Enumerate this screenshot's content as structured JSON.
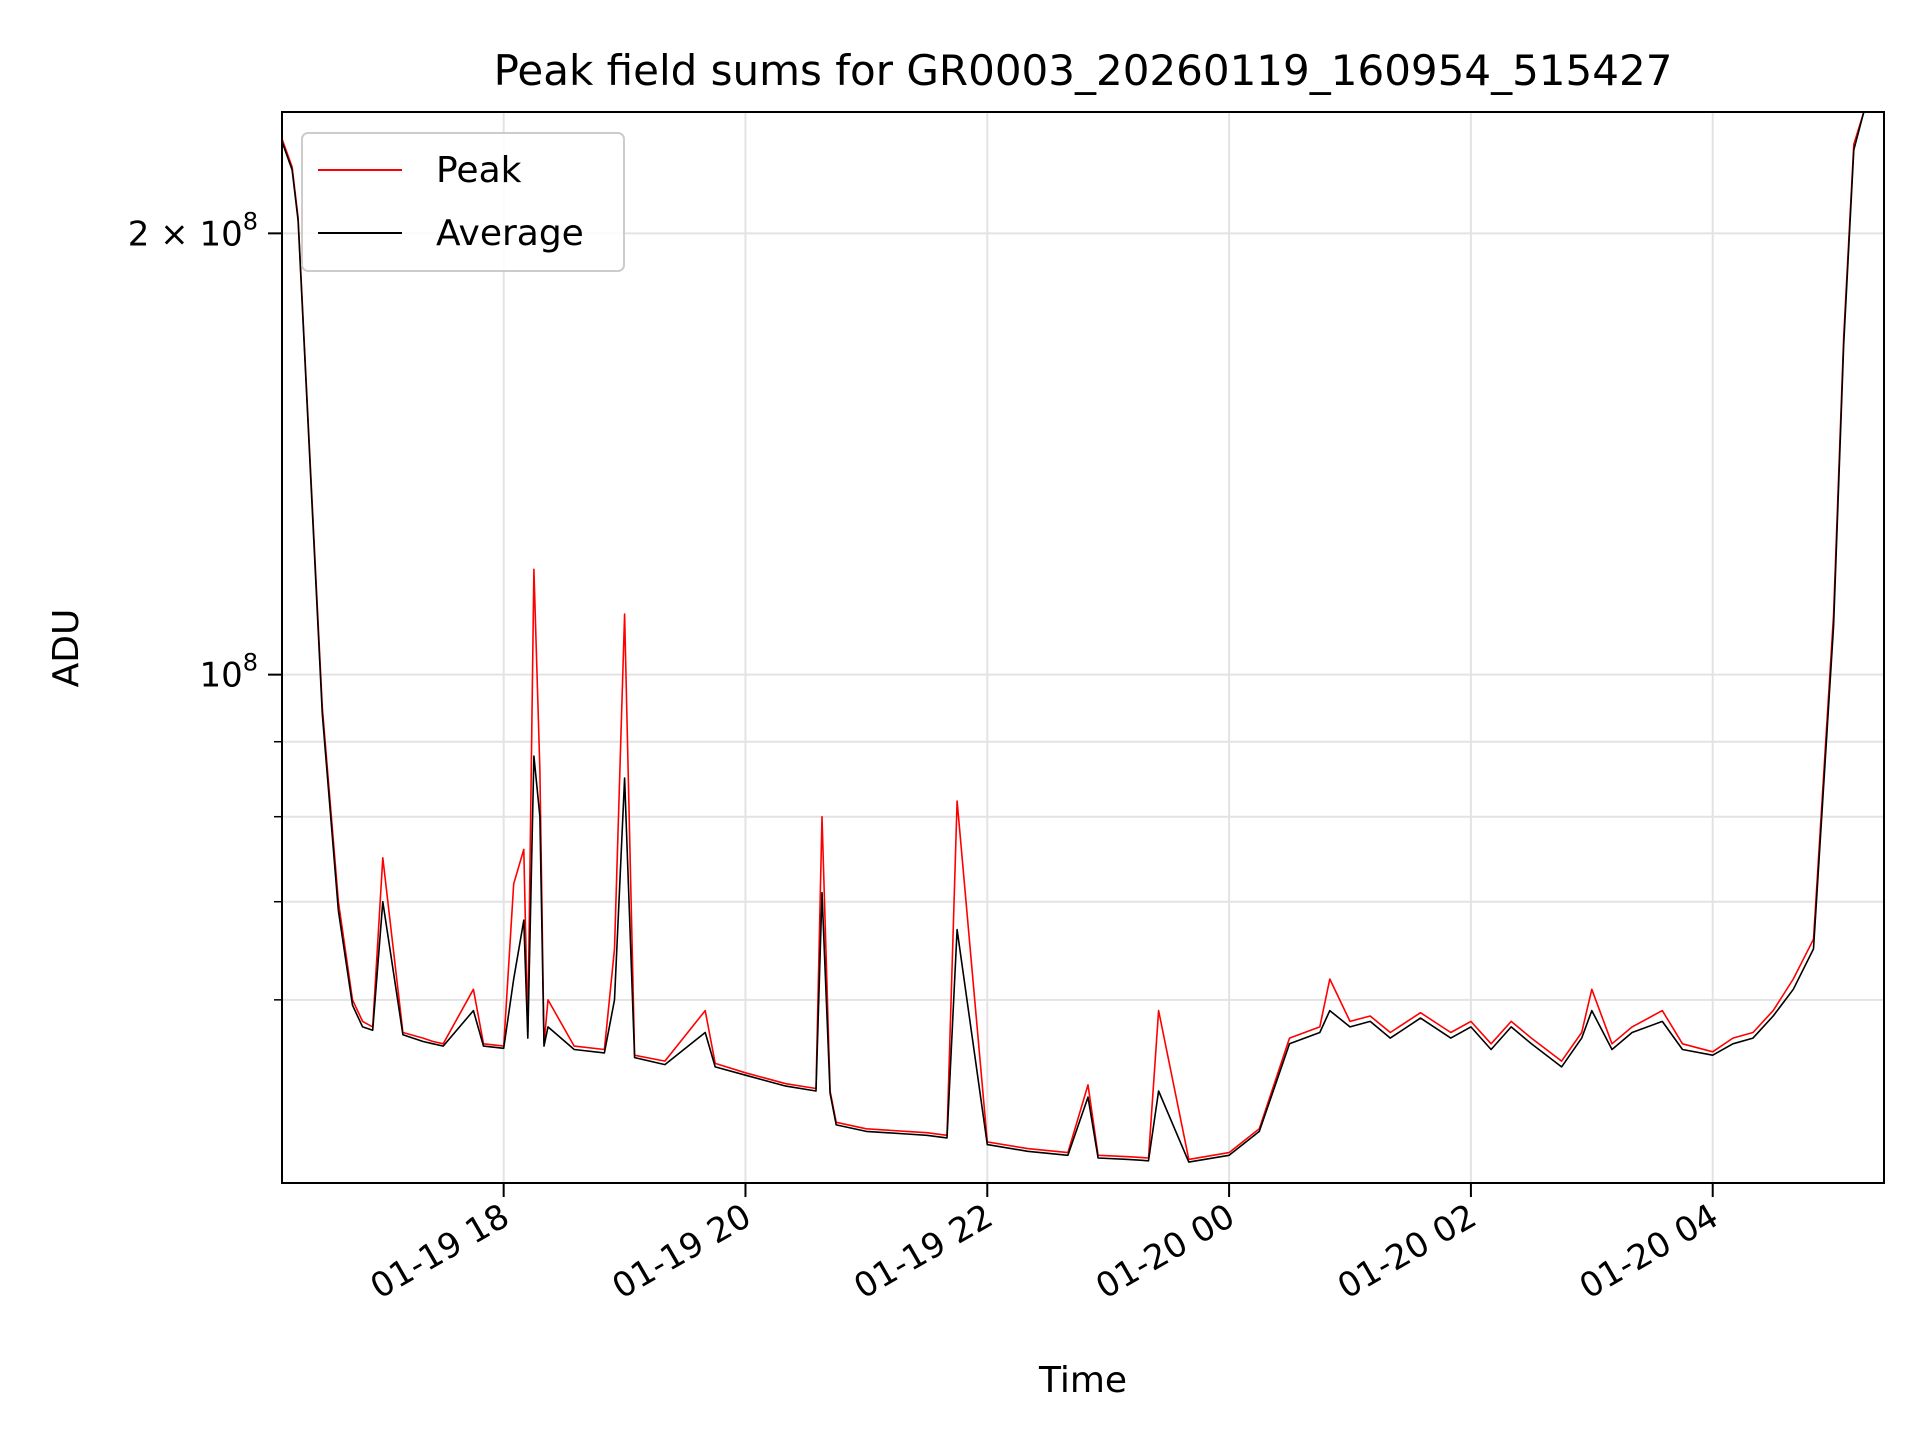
{
  "chart_data": {
    "type": "line",
    "title": "Peak field sums for GR0003_20260119_160954_515427",
    "xlabel": "Time",
    "ylabel": "ADU",
    "yscale": "log",
    "xlim": [
      "2026-01-19 16:10",
      "2026-01-20 05:25"
    ],
    "ylim": [
      45000000,
      242000000
    ],
    "grid": true,
    "legend": "top-left",
    "x_ticks": [
      {
        "time": "2026-01-19 18:00",
        "label": "01-19 18"
      },
      {
        "time": "2026-01-19 20:00",
        "label": "01-19 20"
      },
      {
        "time": "2026-01-19 22:00",
        "label": "01-19 22"
      },
      {
        "time": "2026-01-20 00:00",
        "label": "01-20 00"
      },
      {
        "time": "2026-01-20 02:00",
        "label": "01-20 02"
      },
      {
        "time": "2026-01-20 04:00",
        "label": "01-20 04"
      }
    ],
    "y_major_ticks": [
      {
        "value": 100000000,
        "base": "10",
        "exp": "8"
      },
      {
        "value": 200000000,
        "mantissa": "2",
        "times": "×",
        "base": "10",
        "exp": "8"
      }
    ],
    "y_minor_ticks": [
      60000000,
      70000000,
      80000000,
      90000000
    ],
    "series": [
      {
        "name": "Peak",
        "color": "#ff0000",
        "x": [
          "2026-01-19 16:10",
          "2026-01-19 16:15",
          "2026-01-19 16:18",
          "2026-01-19 16:30",
          "2026-01-19 16:38",
          "2026-01-19 16:45",
          "2026-01-19 16:50",
          "2026-01-19 16:55",
          "2026-01-19 17:00",
          "2026-01-19 17:10",
          "2026-01-19 17:20",
          "2026-01-19 17:25",
          "2026-01-19 17:30",
          "2026-01-19 17:45",
          "2026-01-19 17:50",
          "2026-01-19 18:00",
          "2026-01-19 18:05",
          "2026-01-19 18:10",
          "2026-01-19 18:12",
          "2026-01-19 18:15",
          "2026-01-19 18:18",
          "2026-01-19 18:20",
          "2026-01-19 18:22",
          "2026-01-19 18:35",
          "2026-01-19 18:50",
          "2026-01-19 18:55",
          "2026-01-19 19:00",
          "2026-01-19 19:05",
          "2026-01-19 19:20",
          "2026-01-19 19:40",
          "2026-01-19 19:45",
          "2026-01-19 20:00",
          "2026-01-19 20:20",
          "2026-01-19 20:35",
          "2026-01-19 20:38",
          "2026-01-19 20:42",
          "2026-01-19 20:45",
          "2026-01-19 21:00",
          "2026-01-19 21:20",
          "2026-01-19 21:30",
          "2026-01-19 21:40",
          "2026-01-19 21:45",
          "2026-01-19 22:00",
          "2026-01-19 22:20",
          "2026-01-19 22:40",
          "2026-01-19 22:50",
          "2026-01-19 22:55",
          "2026-01-19 23:10",
          "2026-01-19 23:20",
          "2026-01-19 23:25",
          "2026-01-19 23:40",
          "2026-01-20 00:00",
          "2026-01-20 00:15",
          "2026-01-20 00:30",
          "2026-01-20 00:45",
          "2026-01-20 00:50",
          "2026-01-20 01:00",
          "2026-01-20 01:10",
          "2026-01-20 01:20",
          "2026-01-20 01:35",
          "2026-01-20 01:50",
          "2026-01-20 02:00",
          "2026-01-20 02:10",
          "2026-01-20 02:20",
          "2026-01-20 02:30",
          "2026-01-20 02:45",
          "2026-01-20 02:55",
          "2026-01-20 03:00",
          "2026-01-20 03:10",
          "2026-01-20 03:20",
          "2026-01-20 03:35",
          "2026-01-20 03:45",
          "2026-01-20 04:00",
          "2026-01-20 04:10",
          "2026-01-20 04:20",
          "2026-01-20 04:30",
          "2026-01-20 04:40",
          "2026-01-20 04:50",
          "2026-01-20 05:00",
          "2026-01-20 05:05",
          "2026-01-20 05:10",
          "2026-01-20 05:15",
          "2026-01-20 05:25"
        ],
        "y": [
          232000000,
          222000000,
          205000000,
          95000000,
          70000000,
          60000000,
          58000000,
          57500000,
          75000000,
          57000000,
          56500000,
          56200000,
          56000000,
          61000000,
          56000000,
          55800000,
          72000000,
          76000000,
          57000000,
          118000000,
          86000000,
          56000000,
          60000000,
          55800000,
          55500000,
          65000000,
          110000000,
          55000000,
          54500000,
          59000000,
          54300000,
          53500000,
          52600000,
          52200000,
          80000000,
          52000000,
          49500000,
          49000000,
          48800000,
          48700000,
          48500000,
          82000000,
          48000000,
          47500000,
          47200000,
          52500000,
          47000000,
          46900000,
          46800000,
          59000000,
          46700000,
          47200000,
          49000000,
          56500000,
          57500000,
          62000000,
          58000000,
          58500000,
          57000000,
          58800000,
          57000000,
          58000000,
          56000000,
          58000000,
          56500000,
          54500000,
          57000000,
          61000000,
          56000000,
          57500000,
          59000000,
          56000000,
          55300000,
          56500000,
          57000000,
          59000000,
          62000000,
          66000000,
          110000000,
          170000000,
          230000000,
          242000000,
          242000000
        ]
      },
      {
        "name": "Average",
        "color": "#000000",
        "x": [
          "2026-01-19 16:10",
          "2026-01-19 16:15",
          "2026-01-19 16:18",
          "2026-01-19 16:30",
          "2026-01-19 16:38",
          "2026-01-19 16:45",
          "2026-01-19 16:50",
          "2026-01-19 16:55",
          "2026-01-19 17:00",
          "2026-01-19 17:10",
          "2026-01-19 17:20",
          "2026-01-19 17:25",
          "2026-01-19 17:30",
          "2026-01-19 17:45",
          "2026-01-19 17:50",
          "2026-01-19 18:00",
          "2026-01-19 18:05",
          "2026-01-19 18:10",
          "2026-01-19 18:12",
          "2026-01-19 18:15",
          "2026-01-19 18:18",
          "2026-01-19 18:20",
          "2026-01-19 18:22",
          "2026-01-19 18:35",
          "2026-01-19 18:50",
          "2026-01-19 18:55",
          "2026-01-19 19:00",
          "2026-01-19 19:05",
          "2026-01-19 19:20",
          "2026-01-19 19:40",
          "2026-01-19 19:45",
          "2026-01-19 20:00",
          "2026-01-19 20:20",
          "2026-01-19 20:35",
          "2026-01-19 20:38",
          "2026-01-19 20:42",
          "2026-01-19 20:45",
          "2026-01-19 21:00",
          "2026-01-19 21:20",
          "2026-01-19 21:30",
          "2026-01-19 21:40",
          "2026-01-19 21:45",
          "2026-01-19 22:00",
          "2026-01-19 22:20",
          "2026-01-19 22:40",
          "2026-01-19 22:50",
          "2026-01-19 22:55",
          "2026-01-19 23:10",
          "2026-01-19 23:20",
          "2026-01-19 23:25",
          "2026-01-19 23:40",
          "2026-01-20 00:00",
          "2026-01-20 00:15",
          "2026-01-20 00:30",
          "2026-01-20 00:45",
          "2026-01-20 00:50",
          "2026-01-20 01:00",
          "2026-01-20 01:10",
          "2026-01-20 01:20",
          "2026-01-20 01:35",
          "2026-01-20 01:50",
          "2026-01-20 02:00",
          "2026-01-20 02:10",
          "2026-01-20 02:20",
          "2026-01-20 02:30",
          "2026-01-20 02:45",
          "2026-01-20 02:55",
          "2026-01-20 03:00",
          "2026-01-20 03:10",
          "2026-01-20 03:20",
          "2026-01-20 03:35",
          "2026-01-20 03:45",
          "2026-01-20 04:00",
          "2026-01-20 04:10",
          "2026-01-20 04:20",
          "2026-01-20 04:30",
          "2026-01-20 04:40",
          "2026-01-20 04:50",
          "2026-01-20 05:00",
          "2026-01-20 05:05",
          "2026-01-20 05:10",
          "2026-01-20 05:15",
          "2026-01-20 05:25"
        ],
        "y": [
          231000000,
          221000000,
          204000000,
          94000000,
          69000000,
          59500000,
          57500000,
          57200000,
          70000000,
          56800000,
          56200000,
          56000000,
          55800000,
          59000000,
          55800000,
          55600000,
          62000000,
          68000000,
          56500000,
          88000000,
          80000000,
          55800000,
          57500000,
          55500000,
          55200000,
          60000000,
          85000000,
          54800000,
          54200000,
          57000000,
          54000000,
          53300000,
          52400000,
          52000000,
          71000000,
          51800000,
          49300000,
          48800000,
          48600000,
          48500000,
          48300000,
          67000000,
          47800000,
          47300000,
          47000000,
          51500000,
          46800000,
          46700000,
          46600000,
          52000000,
          46500000,
          47000000,
          48800000,
          56000000,
          57000000,
          59000000,
          57500000,
          58000000,
          56500000,
          58300000,
          56500000,
          57500000,
          55500000,
          57500000,
          56000000,
          54000000,
          56500000,
          59000000,
          55500000,
          57000000,
          58000000,
          55500000,
          55000000,
          56000000,
          56500000,
          58500000,
          61000000,
          65000000,
          108000000,
          168000000,
          228000000,
          242000000,
          242000000
        ]
      }
    ]
  }
}
